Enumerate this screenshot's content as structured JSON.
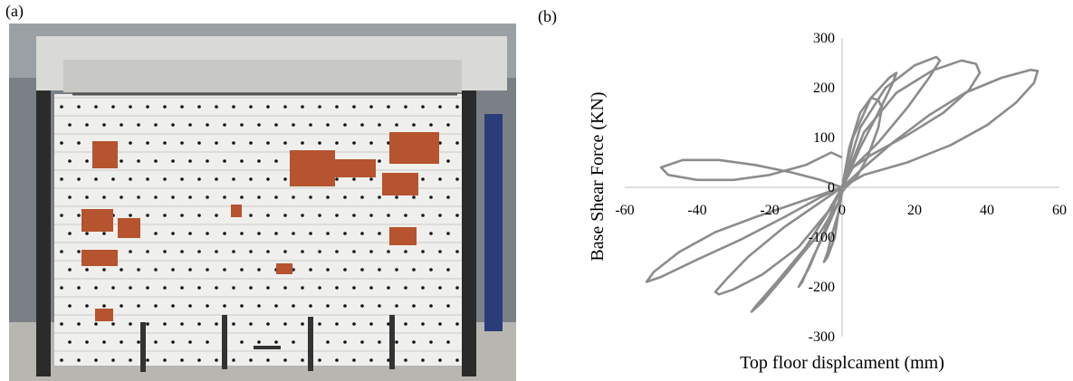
{
  "panels": {
    "a_label": "(a)",
    "b_label": "(b)"
  },
  "photo": {
    "description_icon": "masonry-wall-test-photo-icon"
  },
  "chart_data": {
    "type": "line",
    "xlabel": "Top floor displcament (mm)",
    "ylabel": "Base Shear Force (KN)",
    "xlim": [
      -60,
      60
    ],
    "ylim": [
      -300,
      300
    ],
    "x_ticks": [
      -60,
      -40,
      -20,
      0,
      20,
      40,
      60
    ],
    "y_ticks": [
      300,
      200,
      100,
      0,
      -100,
      -200,
      -300
    ],
    "x_tick_labels": [
      "-60",
      "-40",
      "-20",
      "0",
      "20",
      "40",
      "60"
    ],
    "y_tick_labels": [
      "300",
      "200",
      "100",
      "0",
      "-100",
      "-200",
      "-300"
    ],
    "grid": false,
    "color": "#8c8c8c",
    "series": [
      {
        "x": [
          0,
          2,
          5,
          8,
          10,
          11,
          10,
          7,
          4,
          1,
          0,
          -1,
          -3,
          -4,
          -5,
          -4,
          -2,
          -1,
          0
        ],
        "y": [
          0,
          80,
          150,
          180,
          175,
          160,
          120,
          60,
          20,
          0,
          -10,
          -50,
          -100,
          -130,
          -150,
          -140,
          -100,
          -50,
          0
        ]
      },
      {
        "x": [
          0,
          3,
          8,
          13,
          15,
          14,
          10,
          5,
          2,
          0,
          -2,
          -5,
          -9,
          -12,
          -11,
          -8,
          -4,
          -1,
          0
        ],
        "y": [
          0,
          100,
          180,
          220,
          230,
          210,
          150,
          80,
          30,
          0,
          -30,
          -90,
          -160,
          -200,
          -190,
          -140,
          -80,
          -30,
          0
        ]
      },
      {
        "x": [
          0,
          5,
          12,
          20,
          26,
          27,
          24,
          18,
          10,
          3,
          0,
          -3,
          -10,
          -18,
          -24,
          -25,
          -22,
          -15,
          -6,
          -1,
          0
        ],
        "y": [
          0,
          120,
          200,
          245,
          262,
          255,
          220,
          160,
          90,
          40,
          0,
          -40,
          -120,
          -190,
          -240,
          -250,
          -230,
          -170,
          -90,
          -30,
          0
        ]
      },
      {
        "x": [
          0,
          6,
          15,
          25,
          33,
          37,
          38,
          35,
          28,
          18,
          8,
          2,
          0,
          -4,
          -12,
          -22,
          -30,
          -34,
          -35,
          -32,
          -26,
          -16,
          -6,
          0
        ],
        "y": [
          0,
          110,
          190,
          235,
          255,
          248,
          230,
          195,
          150,
          105,
          65,
          35,
          0,
          -50,
          -120,
          -175,
          -205,
          -215,
          -210,
          -185,
          -140,
          -80,
          -30,
          0
        ]
      },
      {
        "x": [
          0,
          6,
          14,
          24,
          34,
          44,
          52,
          54,
          53,
          48,
          40,
          30,
          18,
          6,
          0,
          -6,
          -16,
          -28,
          -40,
          -50,
          -54,
          -52,
          -45,
          -35,
          -24,
          -12,
          -4,
          0
        ],
        "y": [
          0,
          40,
          90,
          145,
          190,
          220,
          236,
          234,
          210,
          170,
          125,
          85,
          50,
          25,
          0,
          -20,
          -60,
          -105,
          -145,
          -180,
          -190,
          -170,
          -130,
          -90,
          -60,
          -30,
          -10,
          0
        ]
      },
      {
        "x": [
          0,
          -6,
          -14,
          -24,
          -34,
          -44,
          -50,
          -48,
          -40,
          -30,
          -20,
          -10,
          -3,
          0
        ],
        "y": [
          0,
          15,
          30,
          45,
          55,
          55,
          40,
          25,
          15,
          15,
          25,
          45,
          70,
          60
        ]
      }
    ]
  }
}
